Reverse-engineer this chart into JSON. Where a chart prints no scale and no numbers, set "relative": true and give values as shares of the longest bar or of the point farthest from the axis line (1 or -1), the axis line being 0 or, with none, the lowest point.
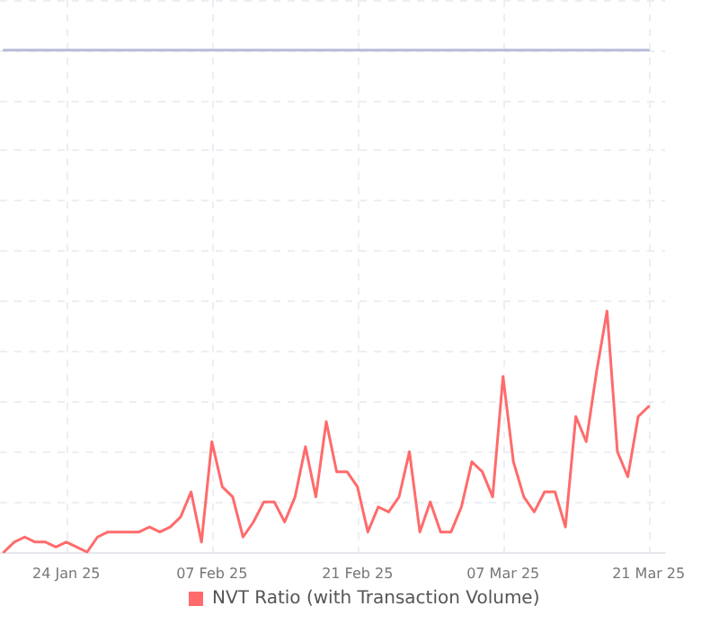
{
  "chart_data": {
    "type": "line",
    "relative": true,
    "grid": true,
    "legend": "bottom",
    "x": [
      "2025-01-18",
      "2025-01-19",
      "2025-01-20",
      "2025-01-21",
      "2025-01-22",
      "2025-01-23",
      "2025-01-24",
      "2025-01-25",
      "2025-01-26",
      "2025-01-27",
      "2025-01-28",
      "2025-01-29",
      "2025-01-30",
      "2025-01-31",
      "2025-02-01",
      "2025-02-02",
      "2025-02-03",
      "2025-02-04",
      "2025-02-05",
      "2025-02-06",
      "2025-02-07",
      "2025-02-08",
      "2025-02-09",
      "2025-02-10",
      "2025-02-11",
      "2025-02-12",
      "2025-02-13",
      "2025-02-14",
      "2025-02-15",
      "2025-02-16",
      "2025-02-17",
      "2025-02-18",
      "2025-02-19",
      "2025-02-20",
      "2025-02-21",
      "2025-02-22",
      "2025-02-23",
      "2025-02-24",
      "2025-02-25",
      "2025-02-26",
      "2025-02-27",
      "2025-02-28",
      "2025-03-01",
      "2025-03-02",
      "2025-03-03",
      "2025-03-04",
      "2025-03-05",
      "2025-03-06",
      "2025-03-07",
      "2025-03-08",
      "2025-03-09",
      "2025-03-10",
      "2025-03-11",
      "2025-03-12",
      "2025-03-13",
      "2025-03-14",
      "2025-03-15",
      "2025-03-16",
      "2025-03-17",
      "2025-03-18",
      "2025-03-19",
      "2025-03-20",
      "2025-03-21"
    ],
    "xlim": [
      "2025-01-17T15:00",
      "2025-03-22T14:00"
    ],
    "xticks": [
      {
        "value": "2025-01-24",
        "label": "24 Jan 25"
      },
      {
        "value": "2025-02-07",
        "label": "07 Feb 25"
      },
      {
        "value": "2025-02-21",
        "label": "21 Feb 25"
      },
      {
        "value": "2025-03-07",
        "label": "07 Mar 25"
      },
      {
        "value": "2025-03-21",
        "label": "21 Mar 25"
      }
    ],
    "series": [
      {
        "name": "NVT Ratio (with Transaction Volume)",
        "color": "#ff6b6b",
        "values": [
          0,
          0.02,
          0.03,
          0.02,
          0.02,
          0.01,
          0.02,
          0.01,
          0,
          0.03,
          0.04,
          0.04,
          0.04,
          0.04,
          0.05,
          0.04,
          0.05,
          0.07,
          0.12,
          0.02,
          0.22,
          0.13,
          0.11,
          0.03,
          0.06,
          0.1,
          0.1,
          0.06,
          0.11,
          0.21,
          0.11,
          0.26,
          0.16,
          0.16,
          0.13,
          0.04,
          0.09,
          0.08,
          0.11,
          0.2,
          0.04,
          0.1,
          0.04,
          0.04,
          0.09,
          0.18,
          0.16,
          0.11,
          0.35,
          0.18,
          0.11,
          0.08,
          0.12,
          0.12,
          0.05,
          0.27,
          0.22,
          0.36,
          0.48,
          0.2,
          0.15,
          0.27,
          0.29
        ]
      },
      {
        "color": "#b8bcd8",
        "values": [
          1,
          1,
          1,
          1,
          1,
          1,
          1,
          1,
          1,
          1,
          1,
          1,
          1,
          1,
          1,
          1,
          1,
          1,
          1,
          1,
          1,
          1,
          1,
          1,
          1,
          1,
          1,
          1,
          1,
          1,
          1,
          1,
          1,
          1,
          1,
          1,
          1,
          1,
          1,
          1,
          1,
          1,
          1,
          1,
          1,
          1,
          1,
          1,
          1,
          1,
          1,
          1,
          1,
          1,
          1,
          1,
          1,
          1,
          1,
          1,
          1,
          1,
          1
        ]
      }
    ]
  }
}
